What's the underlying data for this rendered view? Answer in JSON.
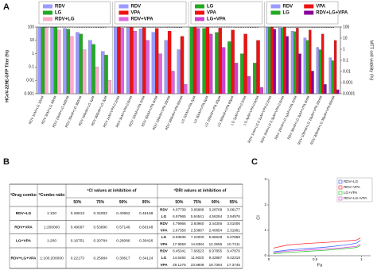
{
  "panel_labels": [
    "A",
    "B",
    "C"
  ],
  "chart_data": [
    {
      "type": "bar",
      "log": true,
      "ylabel": "HCoV-229E-GFP Titer (%)",
      "y2label": "MTT cell viability (%)",
      "ylim": [
        0.001,
        100
      ],
      "yticks": [
        0.001,
        0.01,
        0.1,
        1,
        10,
        100
      ],
      "y2lim": [
        0.0001,
        100
      ],
      "y2ticks": [
        0.0001,
        0.001,
        0.01,
        0.1,
        1,
        10,
        100
      ],
      "groups": [
        {
          "categories": [
            "RDV 1nM+LG 10nM",
            "RDV 3nM+LG 30nM",
            "RDV 10nM+LG 100nM",
            "RDV 30nM+LG 300nM",
            "RDV 100nM+LG 1μM",
            "RDV 300nM+LG 3μM"
          ],
          "series": [
            {
              "name": "RDV",
              "color": "#9b9bff",
              "values": [
                95,
                92,
                80,
                40,
                10,
                1.5
              ]
            },
            {
              "name": "LG",
              "color": "#22aa22",
              "values": [
                98,
                95,
                70,
                30,
                5,
                0.8
              ]
            },
            {
              "name": "RDV+LG",
              "color": "#ffaacc",
              "values": [
                90,
                60,
                20,
                2,
                0.1,
                0.01
              ]
            }
          ],
          "mtt_values": [
            98,
            97,
            97,
            95,
            94,
            92
          ]
        },
        {
          "categories": [
            "RDV 1nM+VPA 0.2mM",
            "RDV 3nM+VPA 0.6mM",
            "RDV 10nM+VPA 2mM",
            "RDV 30nM+VPA 6mM",
            "RDV 100nM+VPA 20mM",
            "RDV 300nM+VPA 60mM"
          ],
          "series": [
            {
              "name": "RDV",
              "color": "#9b9bff",
              "values": [
                95,
                90,
                75,
                40,
                10,
                2
              ]
            },
            {
              "name": "VPA",
              "color": "#ee1111",
              "values": [
                100,
                98,
                90,
                80,
                50,
                20
              ]
            },
            {
              "name": "RDV+VPA",
              "color": "#dd66dd",
              "values": [
                85,
                50,
                10,
                1,
                0.05,
                0.005
              ]
            }
          ],
          "mtt_values": [
            99,
            98,
            96,
            95,
            93,
            90
          ]
        },
        {
          "categories": [
            "LG 10nM+VPA 2μM",
            "LG 30nM+VPA 6μM",
            "LG 100nM+VPA 20μM",
            "LG 300nM+VPA 60μM",
            "LG 1μM+VPA 0.2mM",
            "LG 3μM+VPA 0.6mM"
          ],
          "series": [
            {
              "name": "LG",
              "color": "#22aa22",
              "values": [
                95,
                80,
                40,
                8,
                1,
                0.2
              ]
            },
            {
              "name": "VPA",
              "color": "#ee1111",
              "values": [
                100,
                95,
                85,
                60,
                30,
                10
              ]
            },
            {
              "name": "LG+VPA",
              "color": "#cc44cc",
              "values": [
                80,
                30,
                3,
                0.2,
                0.02,
                0.003
              ]
            }
          ],
          "mtt_values": [
            98,
            98,
            97,
            96,
            94,
            93
          ]
        },
        {
          "categories": [
            "RDV 1nM+LG 0.1μM+VPA 0.2mM",
            "RDV 3nM+LG 0.3μM+VPA 0.6mM",
            "RDV 10nM+LG 1μM+VPA 2mM",
            "RDV 30nM+LG 3μM+VPA 6mM",
            "RDV 100nM+LG 10μM+VPA 20mM",
            "RDV 300nM+LG 30μM+VPA 60mM"
          ],
          "series": [
            {
              "name": "RDV",
              "color": "#9b9bff",
              "values": [
                95,
                85,
                50,
                15,
                3,
                0.5
              ]
            },
            {
              "name": "LG",
              "color": "#22aa22",
              "values": [
                95,
                85,
                45,
                10,
                2,
                0.3
              ]
            },
            {
              "name": "VPA",
              "color": "#ee1111",
              "values": [
                100,
                95,
                85,
                60,
                30,
                10
              ]
            },
            {
              "name": "RDV+LG+VPA",
              "color": "#880099",
              "values": [
                70,
                20,
                1,
                0.05,
                0.005,
                0.002
              ]
            }
          ],
          "mtt_values": [
            97,
            96,
            95,
            94,
            92,
            90
          ]
        }
      ]
    },
    {
      "type": "line",
      "xlabel": "Fa",
      "ylabel": "CI",
      "xlim": [
        0,
        1.1
      ],
      "ylim": [
        0,
        3
      ],
      "xticks": [
        0,
        0.5,
        1
      ],
      "yticks": [
        0,
        1,
        2,
        3
      ],
      "x": [
        0.05,
        0.2,
        0.4,
        0.6,
        0.8,
        0.9,
        0.95,
        0.99
      ],
      "series": [
        {
          "name": "RDV+LG",
          "color": "#4466ff",
          "values": [
            0.15,
            0.22,
            0.28,
            0.33,
            0.41,
            0.46,
            0.5,
            0.6
          ]
        },
        {
          "name": "RDV+VPA",
          "color": "#ff3333",
          "values": [
            0.3,
            0.42,
            0.48,
            0.52,
            0.57,
            0.6,
            0.62,
            0.7
          ]
        },
        {
          "name": "LG+VPA",
          "color": "#33cc33",
          "values": [
            0.08,
            0.12,
            0.17,
            0.21,
            0.27,
            0.3,
            0.33,
            0.4
          ]
        },
        {
          "name": "RDV+LG+VPA",
          "color": "#dd55dd",
          "values": [
            0.12,
            0.18,
            0.22,
            0.26,
            0.31,
            0.35,
            0.37,
            0.45
          ]
        }
      ]
    }
  ],
  "table": {
    "combo_header": {
      "note": "a",
      "text": "Drug combo"
    },
    "ratio_header": {
      "note": "b",
      "text": "Combo ratio"
    },
    "ci_header": {
      "note": "c",
      "text": "CI values at inhibition of"
    },
    "dri_header": {
      "note": "d",
      "text": "DRI values at inhibition of"
    },
    "levels": [
      "50%",
      "75%",
      "90%",
      "95%"
    ],
    "rows": [
      {
        "combo": "RDV+LG",
        "ratio": "1:100",
        "ci": [
          "0.28813",
          "0.34093",
          "0.40962",
          "0.46158"
        ],
        "dri": [
          {
            "drug": "RDV",
            "values": [
              "4.07739",
              "3.66988",
              "3.28708",
              "3.06177"
            ]
          },
          {
            "drug": "LG",
            "values": [
              "6.97965",
              "5.64541",
              "4.56284",
              "3.94976"
            ]
          }
        ]
      },
      {
        "combo": "RDV+VPA",
        "ratio": "1:200000",
        "ci": [
          "0.49097",
          "0.53890",
          "0.57146",
          "0.60148"
        ],
        "dri": [
          {
            "drug": "RDV",
            "values": [
              "4.79966",
              "3.93960",
              "3.44306",
              "3.01006"
            ]
          },
          {
            "drug": "VPA",
            "values": [
              "2.67358",
              "2.53887",
              "2.40854",
              "2.31991"
            ]
          }
        ]
      },
      {
        "combo": "LG+VPA",
        "ratio": "1:200",
        "ci": [
          "0.16751",
          "0.20784",
          "0.26086",
          "0.30426"
        ],
        "dri": [
          {
            "drug": "LG",
            "values": [
              "8.93535",
              "7.24000",
              "5.86628",
              "5.07868"
            ]
          },
          {
            "drug": "VPA",
            "values": [
              "17.9659",
              "14.8384",
              "12.2556",
              "10.7411"
            ]
          }
        ]
      },
      {
        "combo": "RDV+LG+VPA",
        "ratio": "1:100:200000",
        "ci": [
          "0.22173",
          "0.25984",
          "0.30617",
          "0.34124"
        ],
        "dri": [
          {
            "drug": "RDV",
            "values": [
              "8.45341",
              "7.66523",
              "6.97855",
              "6.47876"
            ]
          },
          {
            "drug": "LG",
            "values": [
              "14.5484",
              "11.9020",
              "9.32887",
              "8.42318"
            ]
          },
          {
            "drug": "VPA",
            "values": [
              "29.1276",
              "23.9808",
              "19.7394",
              "17.3745"
            ]
          }
        ]
      }
    ]
  }
}
